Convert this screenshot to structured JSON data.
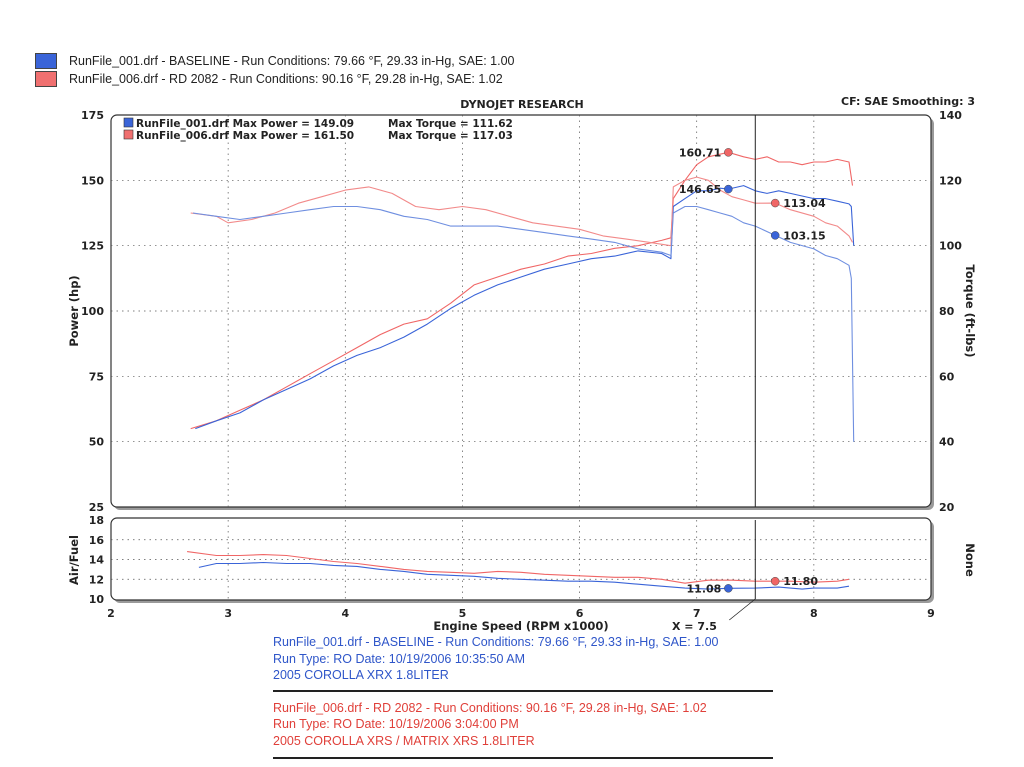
{
  "legend": [
    {
      "text": "RunFile_001.drf - BASELINE  -  Run Conditions: 79.66 °F, 29.33 in-Hg, SAE: 1.00",
      "color": "#3a64d8"
    },
    {
      "text": "RunFile_006.drf - RD 2082  -  Run Conditions: 90.16 °F, 29.28 in-Hg, SAE: 1.02",
      "color": "#f07070"
    }
  ],
  "header": {
    "title": "DYNOJET RESEARCH",
    "cf": "CF: SAE  Smoothing: 3"
  },
  "max_lines": [
    {
      "label": "RunFile_001.drf Max Power = 149.09",
      "torque": "Max Torque = 111.62"
    },
    {
      "label": "RunFile_006.drf Max Power = 161.50",
      "torque": "Max Torque = 117.03"
    }
  ],
  "cursor_label": "X = 7.5",
  "info": {
    "blue": [
      "RunFile_001.drf - BASELINE  -  Run Conditions: 79.66 °F, 29.33 in-Hg, SAE: 1.00",
      "Run Type: RO  Date: 10/19/2006 10:35:50 AM",
      "2005 COROLLA XRX 1.8LITER"
    ],
    "red": [
      "RunFile_006.drf - RD 2082  -  Run Conditions: 90.16 °F, 29.28 in-Hg, SAE: 1.02",
      "Run Type: RO  Date: 10/19/2006 3:04:00 PM",
      "2005 COROLLA XRS / MATRIX XRS  1.8LITER"
    ]
  },
  "chart_data": [
    {
      "type": "line",
      "title": "DYNOJET RESEARCH",
      "xlabel": "Engine Speed (RPM x1000)",
      "ylabel": "Power (hp)",
      "y2label": "Torque (ft-lbs)",
      "xlim": [
        2,
        9
      ],
      "ylim": [
        25,
        175
      ],
      "y2lim": [
        20,
        140
      ],
      "xticks": [
        "2",
        "3",
        "4",
        "5",
        "6",
        "7",
        "8",
        "9"
      ],
      "yticks": [
        "25",
        "50",
        "75",
        "100",
        "125",
        "150",
        "175"
      ],
      "y2ticks": [
        "20",
        "40",
        "60",
        "80",
        "100",
        "120",
        "140"
      ],
      "grid": true,
      "cursor_x": 7.5,
      "colors": {
        "blue": "#3a64d8",
        "red": "#f06666",
        "pink": "#f28a8a",
        "lightblue": "#6f8fe0"
      },
      "series": [
        {
          "axis": "left",
          "color": "#f06666",
          "x": [
            2.68,
            2.9,
            3.1,
            3.3,
            3.5,
            3.7,
            3.9,
            4.1,
            4.3,
            4.5,
            4.7,
            4.9,
            5.1,
            5.3,
            5.5,
            5.7,
            5.9,
            6.1,
            6.3,
            6.5,
            6.7,
            6.78,
            6.8,
            6.9,
            7.0,
            7.1,
            7.2,
            7.27,
            7.4,
            7.5,
            7.6,
            7.7,
            7.8,
            7.9,
            8.0,
            8.1,
            8.2,
            8.3,
            8.33
          ],
          "y": [
            55,
            58,
            62,
            66,
            71,
            76,
            81,
            86,
            91,
            95,
            97,
            103,
            110,
            113,
            116,
            118,
            121,
            122,
            124,
            125,
            127,
            128,
            143,
            150,
            156,
            159,
            160,
            160.71,
            159,
            158,
            159,
            157,
            157,
            156,
            157,
            157,
            158,
            157,
            148
          ]
        },
        {
          "axis": "left",
          "color": "#3a64d8",
          "x": [
            2.72,
            2.9,
            3.1,
            3.3,
            3.5,
            3.7,
            3.9,
            4.1,
            4.3,
            4.5,
            4.7,
            4.9,
            5.1,
            5.3,
            5.5,
            5.7,
            5.9,
            6.1,
            6.3,
            6.5,
            6.7,
            6.78,
            6.8,
            6.9,
            7.0,
            7.1,
            7.2,
            7.27,
            7.4,
            7.5,
            7.6,
            7.7,
            7.8,
            7.9,
            8.0,
            8.1,
            8.2,
            8.3,
            8.32,
            8.34
          ],
          "y": [
            55,
            58,
            61,
            66,
            70,
            74,
            79,
            83,
            86,
            90,
            95,
            101,
            106,
            110,
            113,
            116,
            118,
            120,
            121,
            123,
            122,
            120,
            140,
            143,
            146,
            146,
            147,
            146.65,
            148,
            146,
            145,
            146,
            145,
            144,
            143,
            143,
            142,
            141,
            140,
            125
          ]
        },
        {
          "axis": "right",
          "color": "#f28a8a",
          "x": [
            2.68,
            2.9,
            3.0,
            3.2,
            3.4,
            3.6,
            3.8,
            4.0,
            4.2,
            4.4,
            4.6,
            4.8,
            5.0,
            5.2,
            5.4,
            5.6,
            5.8,
            6.0,
            6.2,
            6.4,
            6.6,
            6.78,
            6.8,
            6.9,
            7.0,
            7.1,
            7.2,
            7.3,
            7.4,
            7.5,
            7.67,
            7.8,
            8.0,
            8.1,
            8.2,
            8.3,
            8.33
          ],
          "y": [
            110,
            109,
            107,
            108,
            110,
            113,
            115,
            117,
            118,
            116,
            112,
            111,
            112,
            111,
            109,
            107,
            106,
            105,
            103,
            102,
            101,
            100,
            118,
            120,
            121,
            120,
            117,
            115,
            114,
            113,
            113.04,
            111,
            109,
            107,
            106,
            103,
            101
          ]
        },
        {
          "axis": "right",
          "color": "#6f8fe0",
          "x": [
            2.7,
            2.9,
            3.1,
            3.3,
            3.5,
            3.7,
            3.9,
            4.1,
            4.3,
            4.5,
            4.7,
            4.9,
            5.1,
            5.3,
            5.5,
            5.7,
            5.9,
            6.1,
            6.3,
            6.5,
            6.7,
            6.78,
            6.8,
            6.9,
            7.0,
            7.1,
            7.2,
            7.3,
            7.4,
            7.5,
            7.67,
            7.8,
            8.0,
            8.1,
            8.2,
            8.3,
            8.32,
            8.34
          ],
          "y": [
            110,
            109,
            108,
            109,
            110,
            111,
            112,
            112,
            111,
            109,
            108,
            106,
            106,
            106,
            105,
            104,
            103,
            102,
            101,
            99,
            98,
            97,
            110,
            112,
            112,
            111,
            110,
            109,
            107,
            106,
            103.15,
            101,
            99,
            97,
            96,
            94,
            90,
            40
          ]
        }
      ],
      "annotations": [
        {
          "x": 7.27,
          "y": 160.71,
          "axis": "left",
          "text": "160.71",
          "color": "#f06666"
        },
        {
          "x": 7.27,
          "y": 146.65,
          "axis": "left",
          "text": "146.65",
          "color": "#3a64d8"
        },
        {
          "x": 7.67,
          "y": 113.04,
          "axis": "right",
          "text": "113.04",
          "color": "#f06666"
        },
        {
          "x": 7.67,
          "y": 103.15,
          "axis": "right",
          "text": "103.15",
          "color": "#3a64d8"
        }
      ]
    },
    {
      "type": "line",
      "xlabel": "Engine Speed (RPM x1000)",
      "ylabel": "Air/Fuel",
      "y2label": "None",
      "xlim": [
        2,
        9
      ],
      "ylim": [
        10,
        18
      ],
      "yticks": [
        "10",
        "12",
        "14",
        "16",
        "18"
      ],
      "xticks": [
        "2",
        "3",
        "4",
        "5",
        "6",
        "7",
        "8",
        "9"
      ],
      "grid": true,
      "series": [
        {
          "color": "#f06666",
          "x": [
            2.65,
            2.9,
            3.1,
            3.3,
            3.5,
            3.7,
            3.9,
            4.1,
            4.3,
            4.5,
            4.7,
            4.9,
            5.1,
            5.3,
            5.5,
            5.7,
            5.9,
            6.1,
            6.3,
            6.5,
            6.7,
            6.9,
            7.1,
            7.3,
            7.5,
            7.67,
            7.8,
            8.0,
            8.2,
            8.3
          ],
          "y": [
            14.8,
            14.4,
            14.4,
            14.5,
            14.4,
            14.1,
            13.8,
            13.6,
            13.3,
            13.0,
            12.8,
            12.7,
            12.6,
            12.8,
            12.7,
            12.5,
            12.4,
            12.3,
            12.2,
            12.2,
            12.0,
            11.6,
            11.9,
            11.9,
            11.8,
            11.8,
            11.8,
            11.7,
            11.8,
            12.0
          ]
        },
        {
          "color": "#3a64d8",
          "x": [
            2.75,
            2.9,
            3.1,
            3.3,
            3.5,
            3.7,
            3.9,
            4.1,
            4.3,
            4.5,
            4.7,
            4.9,
            5.1,
            5.3,
            5.5,
            5.7,
            5.9,
            6.1,
            6.3,
            6.5,
            6.7,
            6.9,
            7.1,
            7.27,
            7.5,
            7.7,
            7.9,
            8.0,
            8.2,
            8.3
          ],
          "y": [
            13.2,
            13.6,
            13.6,
            13.7,
            13.6,
            13.6,
            13.4,
            13.3,
            13.0,
            12.8,
            12.5,
            12.4,
            12.3,
            12.1,
            12.0,
            11.9,
            11.8,
            11.8,
            11.7,
            11.5,
            11.3,
            11.1,
            11.0,
            11.08,
            11.1,
            11.2,
            11.0,
            11.1,
            11.1,
            11.3
          ]
        }
      ],
      "annotations": [
        {
          "x": 7.27,
          "y": 11.08,
          "text": "11.08",
          "color": "#3a64d8"
        },
        {
          "x": 7.67,
          "y": 11.8,
          "text": "11.80",
          "color": "#f06666"
        }
      ]
    }
  ]
}
